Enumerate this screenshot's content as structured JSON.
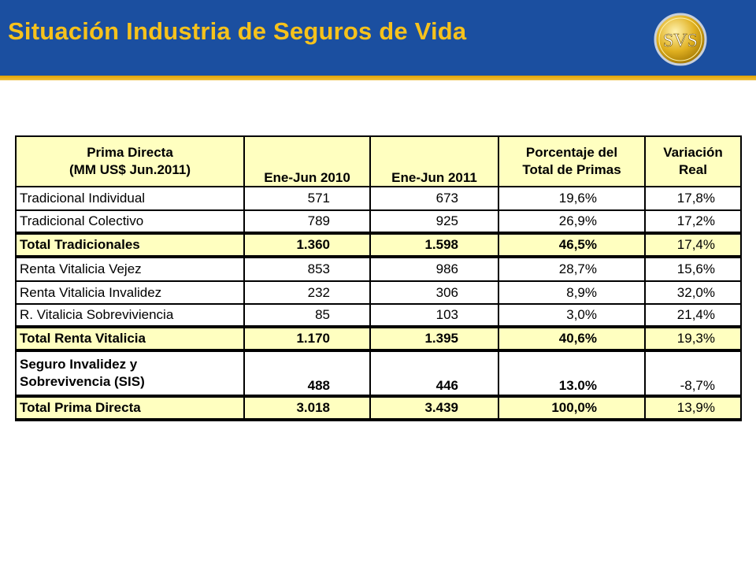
{
  "slide": {
    "title": "Situación Industria de Seguros de Vida",
    "logo_text": "SVS",
    "colors": {
      "header": "#1b4fa0",
      "accent": "#f6c21c",
      "highlight": "#ffffc0"
    }
  },
  "table": {
    "headers": {
      "col1_line1": "Prima Directa",
      "col1_line2": "(MM US$ Jun.2011)",
      "col2": "Ene-Jun 2010",
      "col3": "Ene-Jun 2011",
      "col4_line1": "Porcentaje del",
      "col4_line2": "Total de Primas",
      "col5_line1": "Variación",
      "col5_line2": "Real"
    },
    "rows": [
      {
        "label": "Tradicional Individual",
        "y2010": "571",
        "y2011": "673",
        "pct": "19,6%",
        "var": "17,8%"
      },
      {
        "label": "Tradicional Colectivo",
        "y2010": "789",
        "y2011": "925",
        "pct": "26,9%",
        "var": "17,2%"
      },
      {
        "label": "Total Tradicionales",
        "y2010": "1.360",
        "y2011": "1.598",
        "pct": "46,5%",
        "var": "17,4%"
      },
      {
        "label": "Renta Vitalicia Vejez",
        "y2010": "853",
        "y2011": "986",
        "pct": "28,7%",
        "var": "15,6%"
      },
      {
        "label": "Renta Vitalicia Invalidez",
        "y2010": "232",
        "y2011": "306",
        "pct": "8,9%",
        "var": "32,0%"
      },
      {
        "label": "R. Vitalicia Sobreviviencia",
        "y2010": "85",
        "y2011": "103",
        "pct": "3,0%",
        "var": "21,4%"
      },
      {
        "label": "Total Renta Vitalicia",
        "y2010": "1.170",
        "y2011": "1.395",
        "pct": "40,6%",
        "var": "19,3%"
      },
      {
        "label_line1": "Seguro Invalidez y",
        "label_line2": "Sobrevivencia (SIS)",
        "y2010": "488",
        "y2011": "446",
        "pct": "13.0%",
        "var": "-8,7%"
      },
      {
        "label": "Total Prima Directa",
        "y2010": "3.018",
        "y2011": "3.439",
        "pct": "100,0%",
        "var": "13,9%"
      }
    ]
  }
}
